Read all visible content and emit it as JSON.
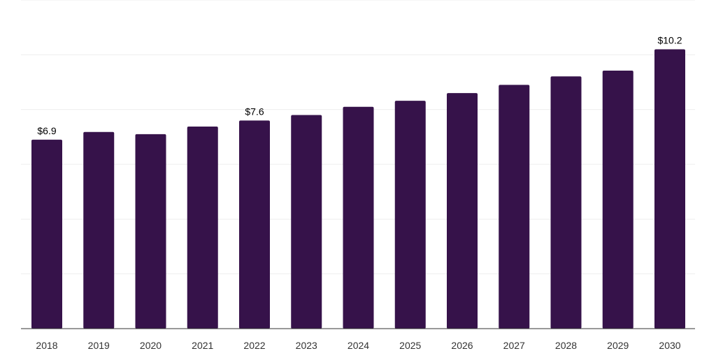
{
  "chart_data": {
    "type": "bar",
    "categories": [
      "2018",
      "2019",
      "2020",
      "2021",
      "2022",
      "2023",
      "2024",
      "2025",
      "2026",
      "2027",
      "2028",
      "2029",
      "2030"
    ],
    "values": [
      6.9,
      7.18,
      7.1,
      7.38,
      7.6,
      7.8,
      8.1,
      8.32,
      8.6,
      8.9,
      9.21,
      9.42,
      10.2
    ],
    "data_labels": {
      "0": "$6.9",
      "4": "$7.6",
      "12": "$10.2"
    },
    "title": "",
    "xlabel": "",
    "ylabel": "",
    "ylim": [
      0,
      12
    ],
    "grid": true,
    "bar_color": "#36124a",
    "grid_color": "#eeeeee",
    "axis_color": "#333333"
  }
}
